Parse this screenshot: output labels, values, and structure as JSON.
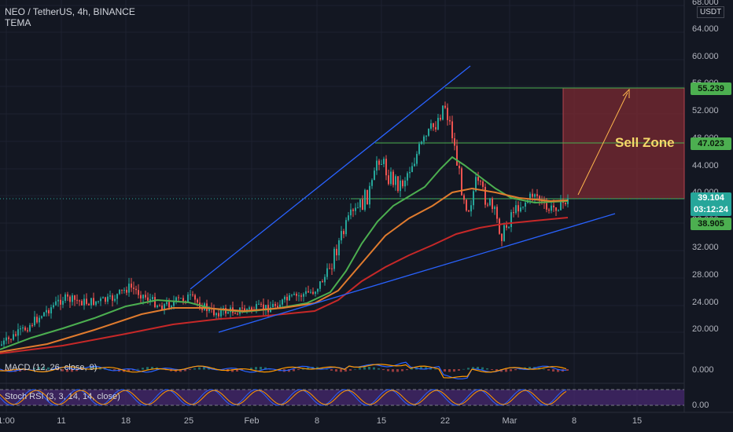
{
  "header": {
    "symbol_line": "NEO / TetherUS, 4h, BINANCE",
    "indicator": "TEMA"
  },
  "currency": "USDT",
  "annotation": "Sell Zone",
  "price_axis": {
    "ticks": [
      "68.000",
      "64.000",
      "60.000",
      "56.000",
      "52.000",
      "48.000",
      "44.000",
      "40.000",
      "36.000",
      "32.000",
      "28.000",
      "24.000",
      "20.000"
    ],
    "labels": {
      "top_target": "55.239",
      "mid_target": "47.023",
      "last_price": "39.104",
      "countdown": "03:12:24",
      "tema_value": "38.905"
    },
    "colors": {
      "green_label": "#4caf50",
      "current_label": "#2e7d32",
      "tema_label": "#4caf50"
    }
  },
  "date_axis": [
    "1:00",
    "11",
    "18",
    "25",
    "Feb",
    "8",
    "15",
    "22",
    "Mar",
    "8",
    "15"
  ],
  "panes": {
    "macd": {
      "label": "MACD (12, 26, close, 9)",
      "value": "0.000"
    },
    "stoch_rsi": {
      "label": "Stoch RSI (3, 3, 14, 14, close)",
      "value": "0.00"
    }
  },
  "colors": {
    "background": "#131722",
    "up_candle": "#26a69a",
    "down_candle": "#ef5350",
    "ema_fast": "#4caf50",
    "ema_mid": "#e07b2e",
    "ema_slow": "#c62828",
    "trendline": "#2962ff",
    "target_line": "#4caf50",
    "zone_fill": "#7b2a32",
    "stoch_band": "#4a2a73"
  }
}
